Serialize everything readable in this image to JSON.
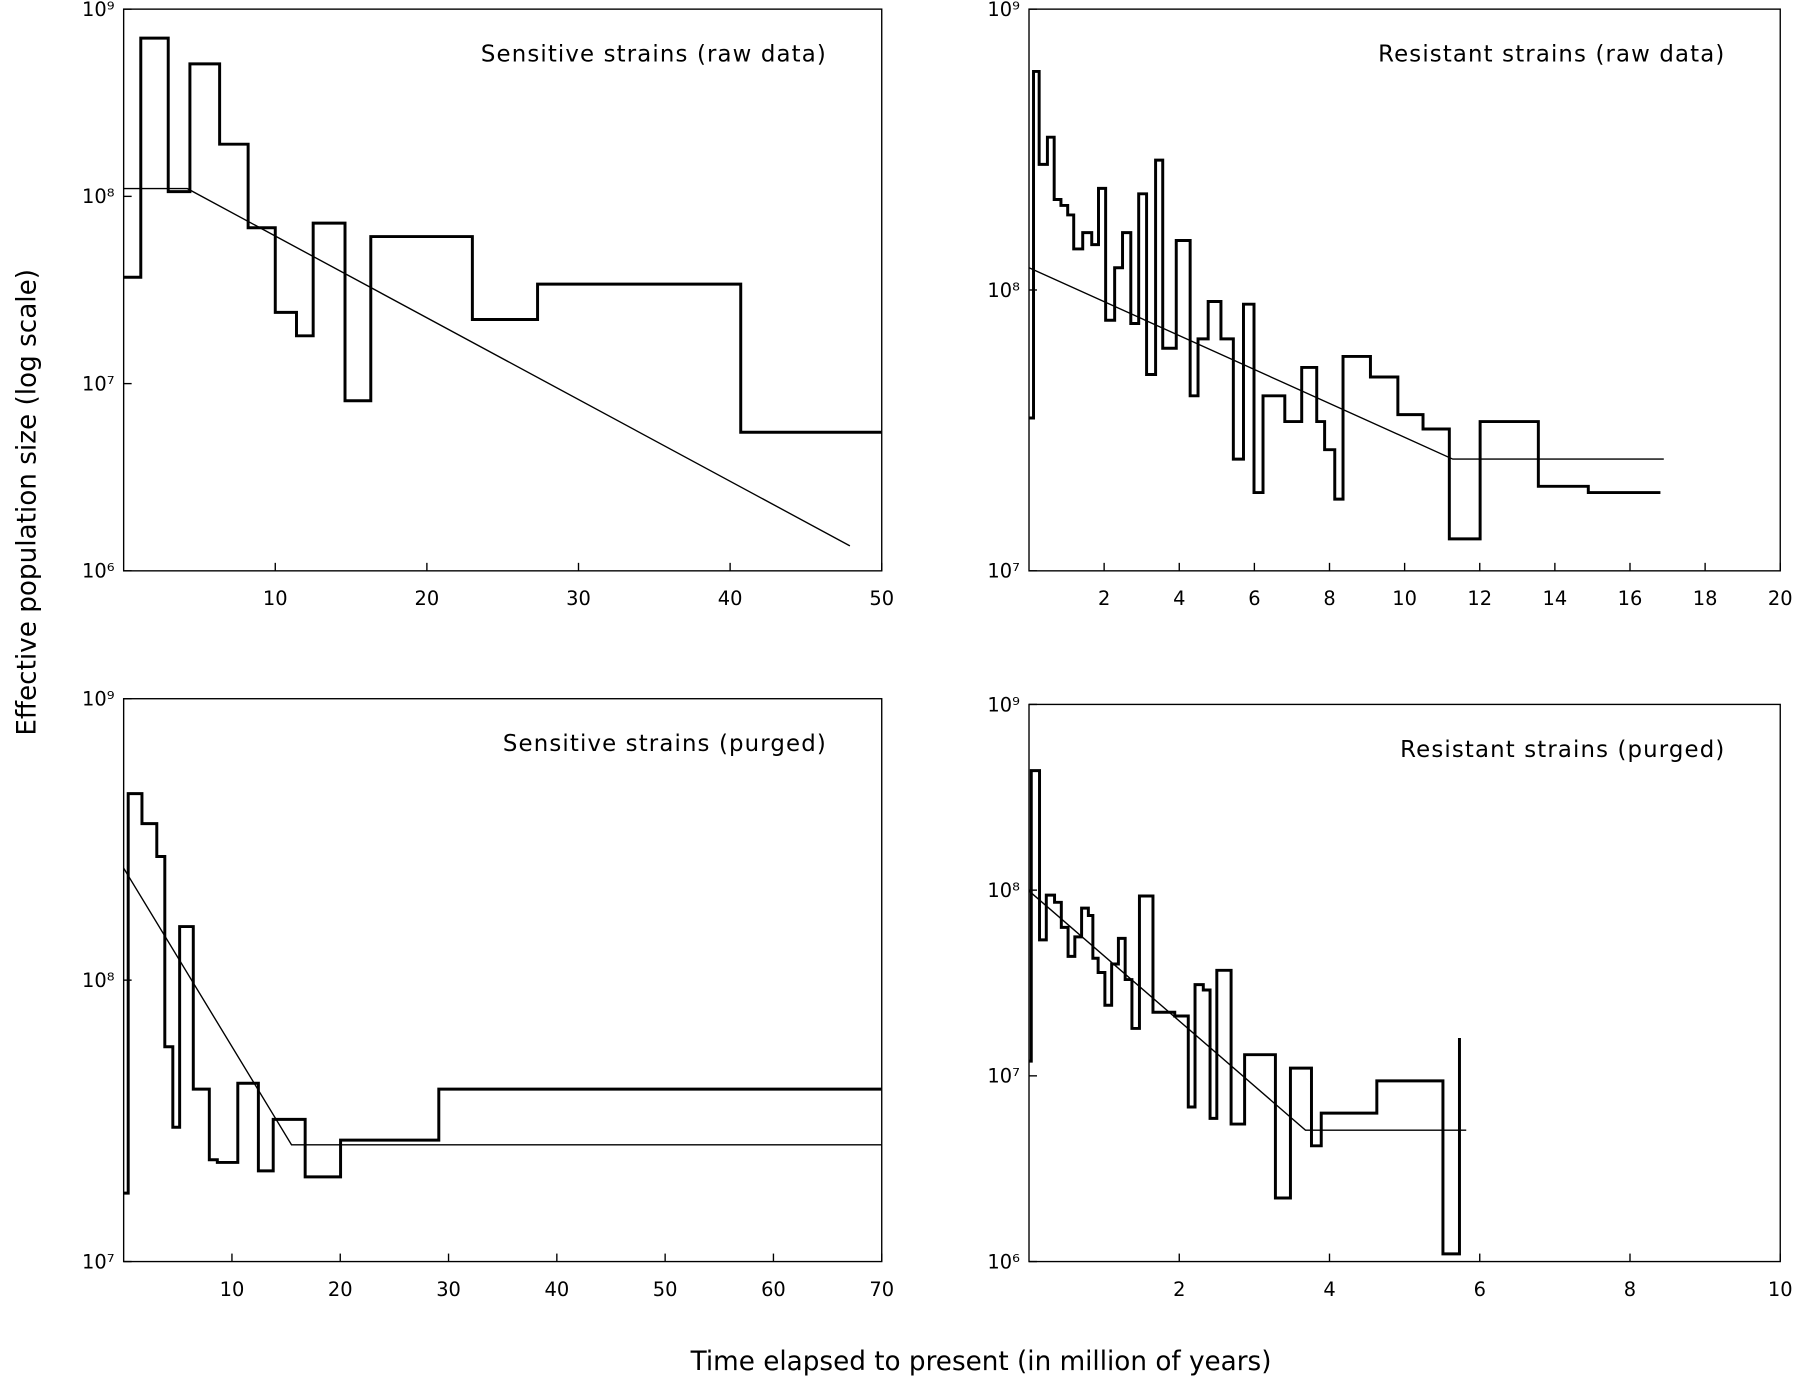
{
  "ylabel": "Effective population size (log scale)",
  "xlabel": "Time elapsed to present (in million of years)",
  "chart_data": [
    {
      "type": "line",
      "title": "Sensitive strains (raw data)",
      "yscale": "log",
      "xlim": [
        0,
        50
      ],
      "xticks": [
        10,
        20,
        30,
        40,
        50
      ],
      "ylim": [
        1000000,
        1000000000
      ],
      "yticks": [
        {
          "value": 1000000,
          "label": "10⁶"
        },
        {
          "value": 10000000,
          "label": "10⁷"
        },
        {
          "value": 100000000,
          "label": "10⁸"
        },
        {
          "value": 1000000000,
          "label": "10⁹"
        }
      ],
      "series": [
        {
          "color": "#000000",
          "drawstyle": "steps-post",
          "linewidth": 2.6,
          "x": [
            0,
            1.13,
            2.94,
            4.37,
            6.33,
            8.21,
            10.0,
            11.4,
            12.5,
            14.6,
            16.3,
            23.0,
            27.3,
            40.7,
            50
          ],
          "values": [
            37000000.0,
            700000000.0,
            106000000.0,
            510000000.0,
            190000000.0,
            68000000.0,
            24000000.0,
            18000000.0,
            72000000.0,
            8100000.0,
            61000000.0,
            22000000.0,
            34000000.0,
            5500000.0,
            5500000.0
          ]
        },
        {
          "color": "#000000",
          "drawstyle": "default",
          "linewidth": 1.2,
          "x": [
            0,
            4.2,
            47.9
          ],
          "values": [
            110000000.0,
            110000000.0,
            1360000.0
          ]
        }
      ]
    },
    {
      "type": "line",
      "title": "Resistant strains (raw data)",
      "yscale": "log",
      "xlim": [
        0,
        20
      ],
      "xticks": [
        2,
        4,
        6,
        8,
        10,
        12,
        14,
        16,
        18,
        20
      ],
      "ylim": [
        10000000,
        1000000000
      ],
      "yticks": [
        {
          "value": 10000000,
          "label": "10⁷"
        },
        {
          "value": 100000000,
          "label": "10⁸"
        },
        {
          "value": 1000000000,
          "label": "10⁹"
        }
      ],
      "series": [
        {
          "color": "#000000",
          "drawstyle": "steps-post",
          "linewidth": 2.6,
          "x": [
            0,
            0.12,
            0.27,
            0.49,
            0.67,
            0.85,
            1.03,
            1.19,
            1.43,
            1.67,
            1.85,
            2.04,
            2.28,
            2.49,
            2.71,
            2.92,
            3.13,
            3.37,
            3.56,
            3.92,
            4.29,
            4.5,
            4.77,
            5.11,
            5.44,
            5.71,
            5.99,
            6.23,
            6.81,
            7.26,
            7.66,
            7.87,
            8.14,
            8.36,
            9.09,
            9.82,
            10.49,
            11.19,
            12.01,
            13.56,
            14.89,
            16.81
          ],
          "values": [
            35000000.0,
            600000000.0,
            280000000.0,
            350000000.0,
            210000000.0,
            200000000.0,
            185000000.0,
            140000000.0,
            160000000.0,
            145000000.0,
            230000000.0,
            78000000.0,
            120000000.0,
            160000000.0,
            76000000.0,
            220000000.0,
            50000000.0,
            290000000.0,
            62000000.0,
            150000000.0,
            42000000.0,
            67000000.0,
            91000000.0,
            67000000.0,
            25000000.0,
            89000000.0,
            19000000.0,
            42000000.0,
            34000000.0,
            53000000.0,
            34000000.0,
            27000000.0,
            18000000.0,
            58000000.0,
            49000000.0,
            36000000.0,
            32000000.0,
            13000000.0,
            34000000.0,
            20000000.0,
            19000000.0,
            19000000.0
          ]
        },
        {
          "color": "#000000",
          "drawstyle": "default",
          "linewidth": 1.2,
          "x": [
            0,
            11.28,
            16.9
          ],
          "values": [
            120000000.0,
            25000000.0,
            25000000.0
          ]
        }
      ]
    },
    {
      "type": "line",
      "title": "Sensitive strains (purged)",
      "yscale": "log",
      "xlim": [
        0,
        70
      ],
      "xticks": [
        10,
        20,
        30,
        40,
        50,
        60,
        70
      ],
      "ylim": [
        10000000,
        1000000000
      ],
      "yticks": [
        {
          "value": 10000000,
          "label": "10⁷"
        },
        {
          "value": 100000000,
          "label": "10⁸"
        },
        {
          "value": 1000000000,
          "label": "10⁹"
        }
      ],
      "series": [
        {
          "color": "#000000",
          "drawstyle": "steps-post",
          "linewidth": 2.6,
          "x": [
            0,
            0.42,
            1.69,
            3.06,
            3.8,
            4.54,
            5.17,
            6.43,
            7.91,
            8.65,
            10.54,
            12.44,
            13.81,
            16.76,
            20.03,
            29.1,
            70
          ],
          "values": [
            17500000.0,
            460000000.0,
            360000000.0,
            275000000.0,
            58000000.0,
            30000000.0,
            155000000.0,
            41000000.0,
            23000000.0,
            22500000.0,
            43000000.0,
            21000000.0,
            32000000.0,
            20000000.0,
            27000000.0,
            41000000.0,
            41000000.0
          ]
        },
        {
          "color": "#000000",
          "drawstyle": "default",
          "linewidth": 1.2,
          "x": [
            0,
            15.5,
            70
          ],
          "values": [
            250000000.0,
            26000000.0,
            26000000.0
          ]
        }
      ]
    },
    {
      "type": "line",
      "title": "Resistant strains (purged)",
      "yscale": "log",
      "xlim": [
        0,
        10
      ],
      "xticks": [
        2,
        4,
        6,
        8,
        10
      ],
      "ylim": [
        1000000,
        1000000000
      ],
      "yticks": [
        {
          "value": 1000000,
          "label": "10⁶"
        },
        {
          "value": 10000000,
          "label": "10⁷"
        },
        {
          "value": 100000000,
          "label": "10⁸"
        },
        {
          "value": 1000000000,
          "label": "10⁹"
        }
      ],
      "series": [
        {
          "color": "#000000",
          "drawstyle": "steps-post",
          "linewidth": 2.6,
          "x": [
            0,
            0.03,
            0.14,
            0.23,
            0.34,
            0.43,
            0.52,
            0.61,
            0.7,
            0.79,
            0.85,
            0.92,
            1.01,
            1.1,
            1.19,
            1.28,
            1.37,
            1.47,
            1.65,
            1.79,
            1.94,
            2.12,
            2.21,
            2.32,
            2.41,
            2.5,
            2.69,
            2.87,
            3.07,
            3.28,
            3.48,
            3.76,
            3.89,
            4.63,
            5.51,
            5.73
          ],
          "values": [
            12000000.0,
            440000000.0,
            54000000.0,
            94000000.0,
            86000000.0,
            63000000.0,
            44000000.0,
            56000000.0,
            80000000.0,
            73000000.0,
            43000000.0,
            36000000.0,
            24000000.0,
            40000000.0,
            55000000.0,
            33000000.0,
            18000000.0,
            93000000.0,
            22000000.0,
            22000000.0,
            21000000.0,
            6800000.0,
            31000000.0,
            29000000.0,
            5900000.0,
            37000000.0,
            5500000.0,
            13000000.0,
            13000000.0,
            2200000.0,
            11000000.0,
            4200000.0,
            6300000.0,
            9400000.0,
            1100000.0,
            16000000.0
          ]
        },
        {
          "color": "#000000",
          "drawstyle": "default",
          "linewidth": 1.2,
          "x": [
            0,
            3.68,
            5.82
          ],
          "values": [
            99000000.0,
            5100000.0,
            5100000.0
          ]
        }
      ]
    }
  ]
}
